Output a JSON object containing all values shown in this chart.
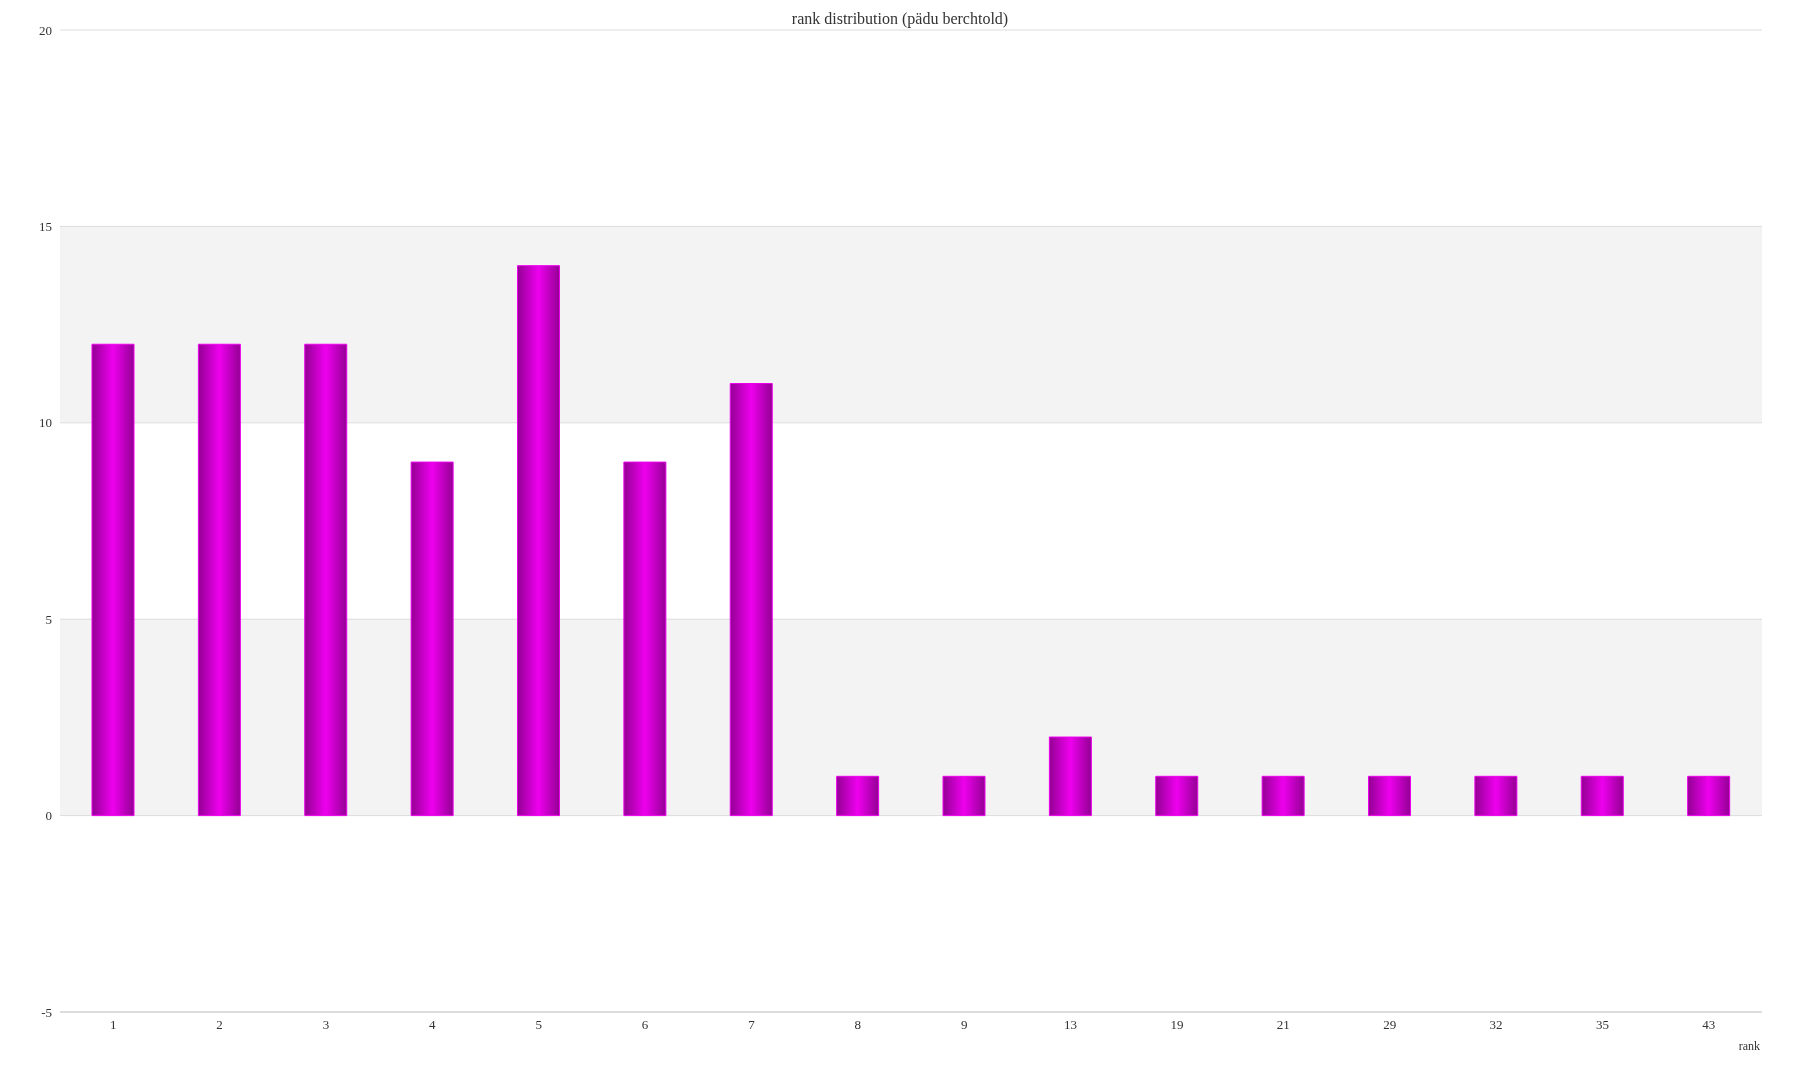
{
  "chart_data": {
    "type": "bar",
    "title": "rank distribution (pädu berchtold)",
    "xlabel": "rank",
    "categories": [
      "1",
      "2",
      "3",
      "4",
      "5",
      "6",
      "7",
      "8",
      "9",
      "13",
      "19",
      "21",
      "29",
      "32",
      "35",
      "43"
    ],
    "values": [
      12,
      12,
      12,
      9,
      14,
      9,
      11,
      1,
      1,
      2,
      1,
      1,
      1,
      1,
      1,
      1
    ],
    "color": "#ee00ee",
    "ylim": [
      -5,
      20
    ],
    "yticks": [
      -5,
      0,
      5,
      10,
      15,
      20
    ],
    "grid": "y"
  }
}
